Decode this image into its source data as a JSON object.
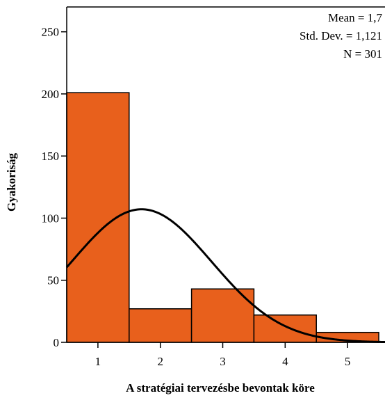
{
  "chart_data": {
    "type": "bar",
    "subtype": "histogram",
    "bins": [
      {
        "label": "1",
        "value": 201
      },
      {
        "label": "2",
        "value": 27
      },
      {
        "label": "3",
        "value": 43
      },
      {
        "label": "4",
        "value": 22
      },
      {
        "label": "5",
        "value": 8
      }
    ],
    "xlabel": "A stratégiai tervezésbe bevontak köre",
    "ylabel": "Gyakoriság",
    "ylim": [
      0,
      270
    ],
    "xlim": [
      0.5,
      5.6
    ],
    "yticks": [
      "0",
      "50",
      "100",
      "150",
      "200",
      "250"
    ],
    "xticks": [
      "1",
      "2",
      "3",
      "4",
      "5"
    ],
    "normal_curve": {
      "mean": 1.7,
      "sd": 1.121,
      "n": 301
    },
    "stats": {
      "mean": "Mean = 1,7",
      "std_dev": "Std. Dev. = 1,121",
      "n": "N = 301"
    },
    "bar_color": "#E8601C",
    "grid": false
  }
}
